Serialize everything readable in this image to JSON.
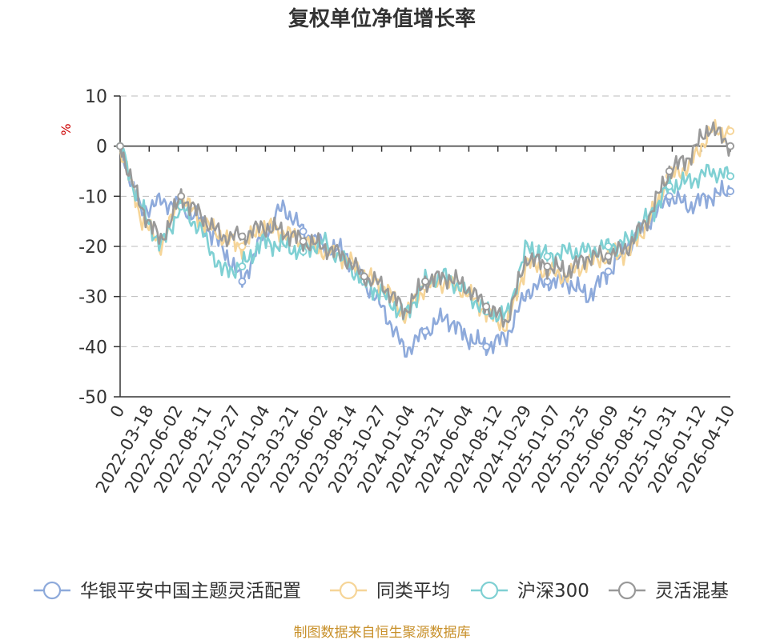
{
  "chart_data": {
    "type": "line",
    "title": "复权单位净值增长率",
    "ylabel": "%",
    "ylim": [
      -50,
      10
    ],
    "yticks": [
      10,
      0,
      -10,
      -20,
      -30,
      -40,
      -50
    ],
    "x_ticks": [
      "0",
      "2022-03-18",
      "2022-06-02",
      "2022-08-11",
      "2022-10-27",
      "2023-01-04",
      "2023-03-21",
      "2023-06-02",
      "2023-08-14",
      "2023-10-27",
      "2024-01-04",
      "2024-03-21",
      "2024-06-04",
      "2024-08-12",
      "2024-10-29",
      "2025-01-07",
      "2025-03-25",
      "2025-06-09",
      "2025-08-15",
      "2025-10-31",
      "2026-01-12",
      "2026-04-10"
    ],
    "series": [
      {
        "name": "华银平安中国主题灵活配置",
        "color": "#8eaadb",
        "values": [
          0,
          -13,
          -11,
          -12,
          -15,
          -20,
          -27,
          -18,
          -12,
          -17,
          -20,
          -21,
          -27,
          -33,
          -41,
          -37,
          -34,
          -38,
          -40,
          -38,
          -29,
          -27,
          -27,
          -30,
          -25,
          -20,
          -15,
          -10,
          -12,
          -10,
          -9
        ]
      },
      {
        "name": "同类平均",
        "color": "#f6d598",
        "values": [
          0,
          -14,
          -20,
          -10,
          -15,
          -18,
          -20,
          -16,
          -17,
          -19,
          -21,
          -22,
          -26,
          -28,
          -34,
          -28,
          -27,
          -29,
          -33,
          -36,
          -23,
          -25,
          -26,
          -23,
          -22,
          -21,
          -15,
          -6,
          -4,
          3,
          3
        ]
      },
      {
        "name": "沪深300",
        "color": "#7fd0d3",
        "values": [
          0,
          -12,
          -20,
          -12,
          -17,
          -25,
          -24,
          -19,
          -20,
          -21,
          -19,
          -23,
          -27,
          -30,
          -34,
          -27,
          -26,
          -29,
          -33,
          -34,
          -20,
          -22,
          -21,
          -21,
          -20,
          -19,
          -14,
          -8,
          -7,
          -5,
          -6
        ]
      },
      {
        "name": "灵活混基",
        "color": "#999999",
        "values": [
          0,
          -12,
          -19,
          -10,
          -14,
          -18,
          -18,
          -16,
          -17,
          -19,
          -20,
          -22,
          -26,
          -28,
          -33,
          -27,
          -26,
          -28,
          -32,
          -35,
          -22,
          -24,
          -25,
          -22,
          -22,
          -20,
          -14,
          -5,
          -2,
          4,
          0
        ]
      }
    ],
    "legend_position": "bottom",
    "grid": true,
    "source": "制图数据来自恒生聚源数据库"
  }
}
